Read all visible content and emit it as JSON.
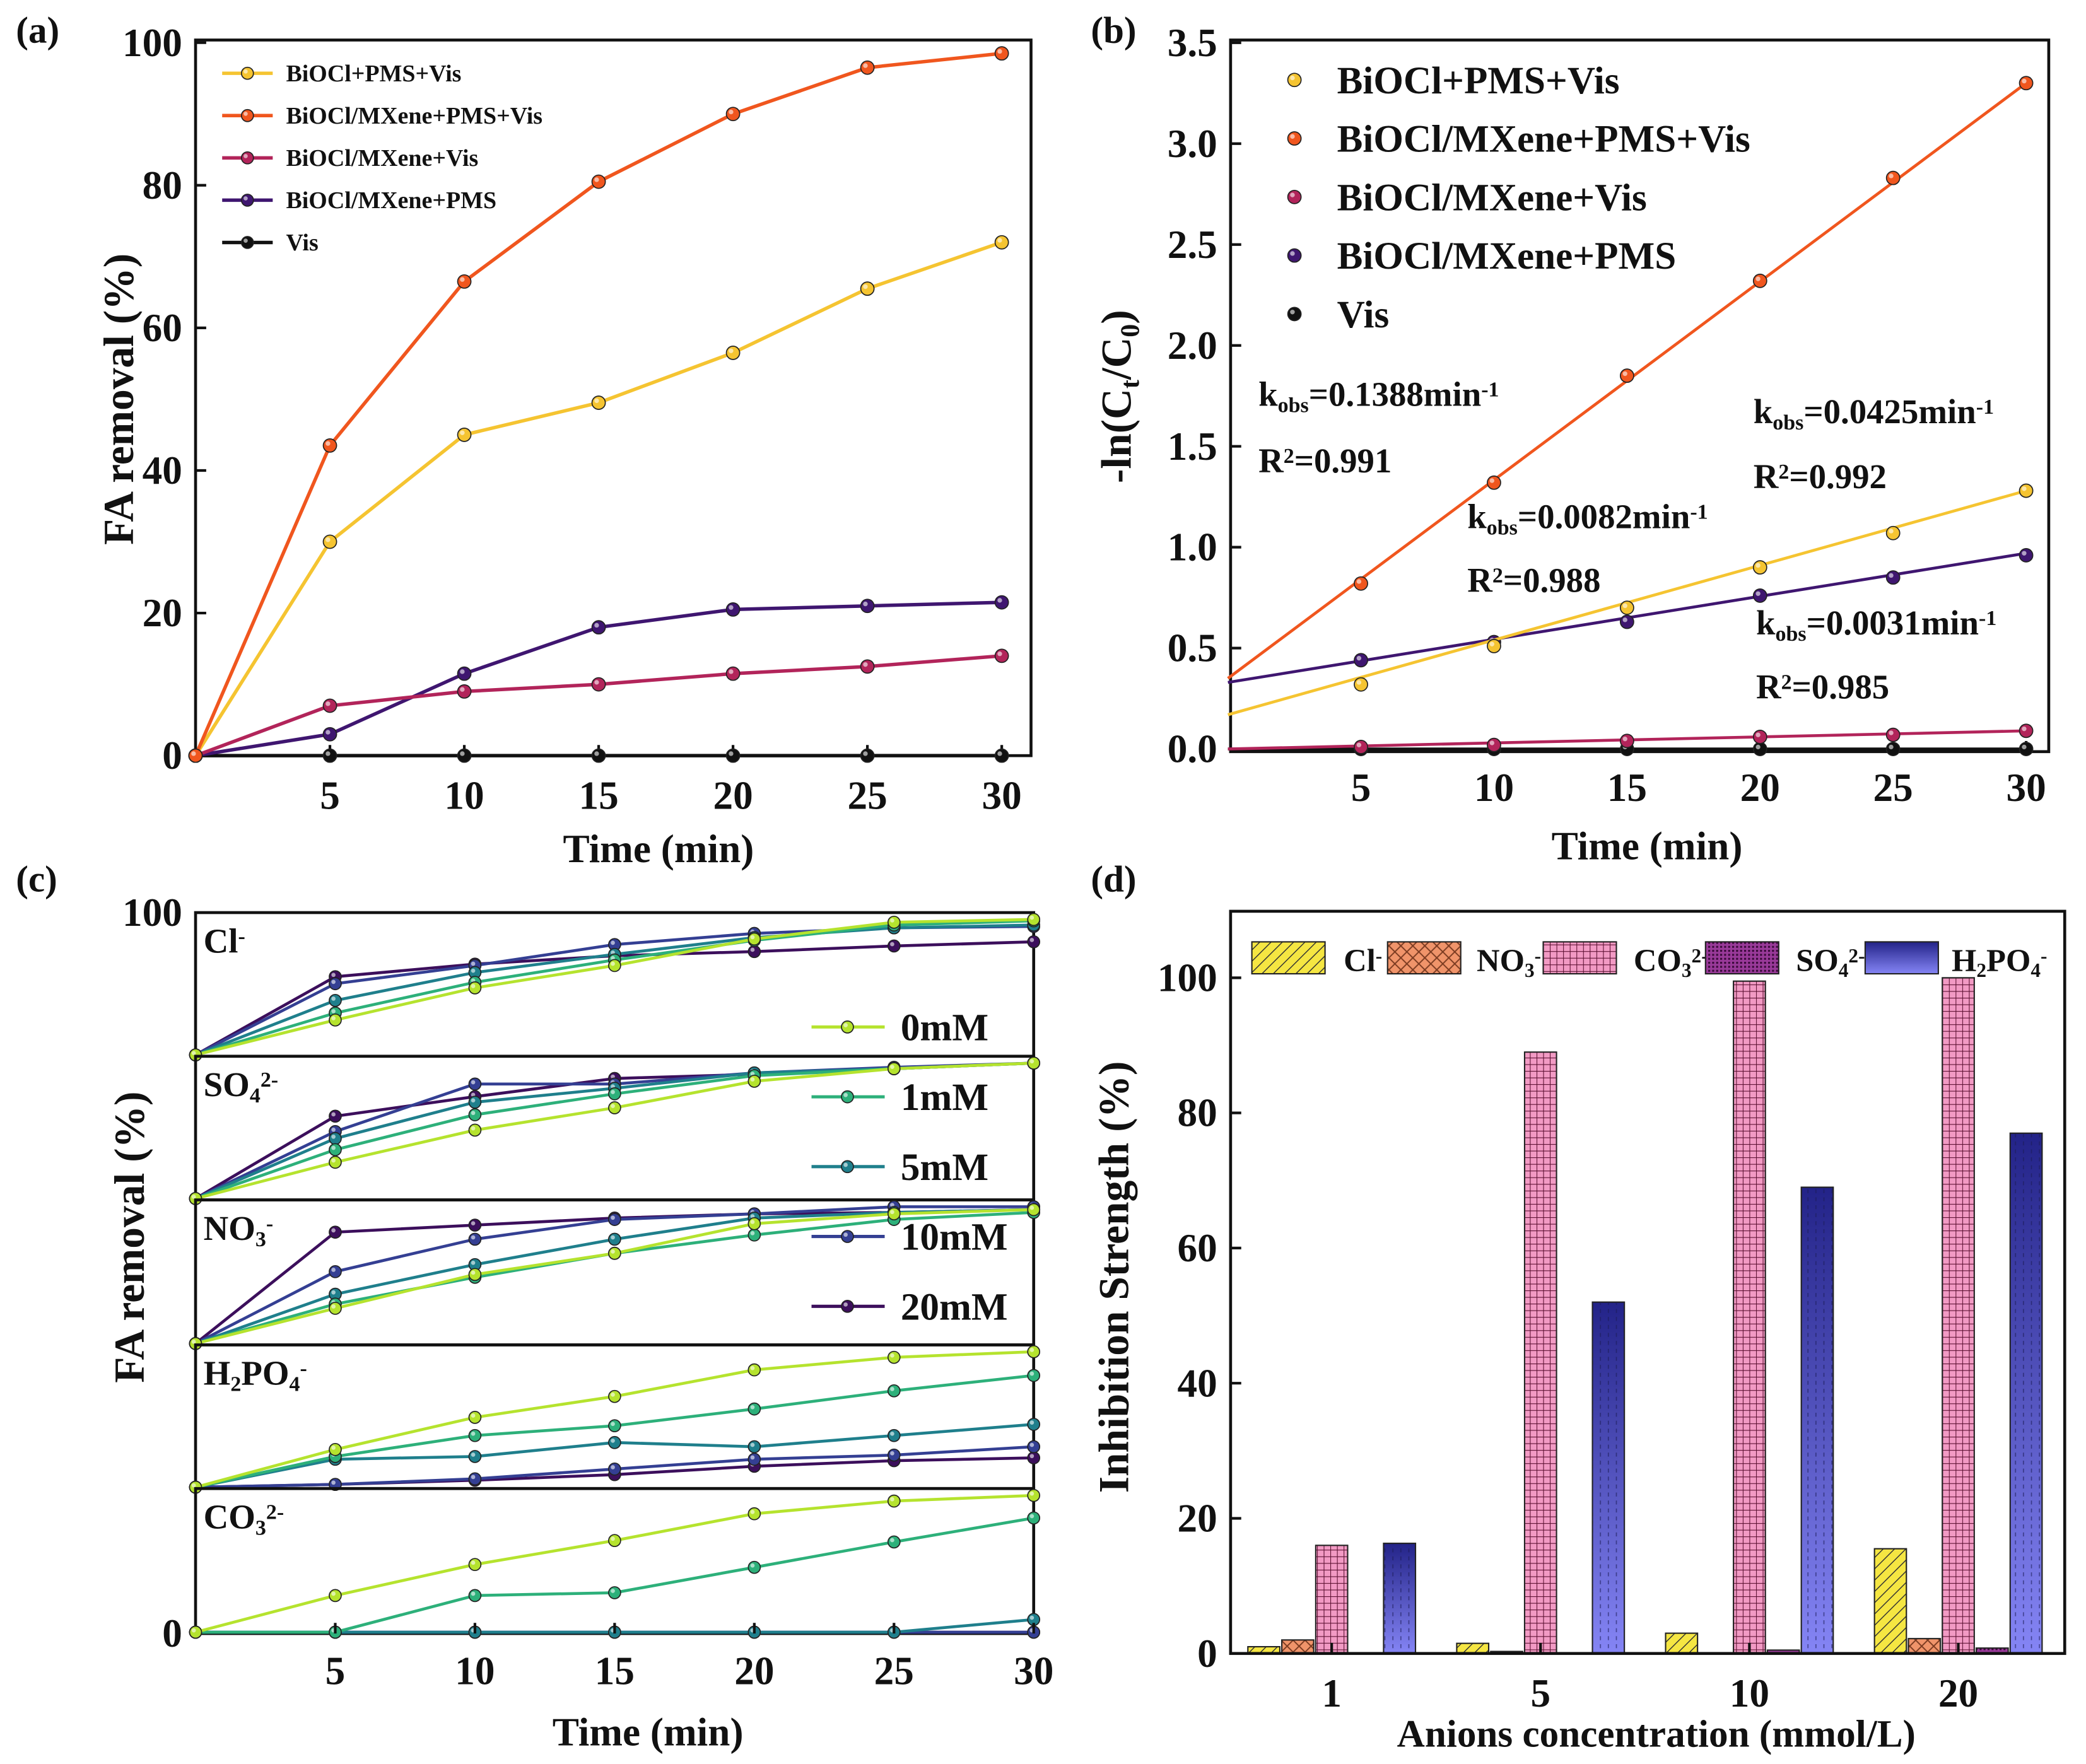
{
  "colors": {
    "BiOCl+PMS+Vis": "#F5C431",
    "BiOCl/MXene+PMS+Vis": "#F0561E",
    "BiOCl/MXene+Vis": "#B2245A",
    "BiOCl/MXene+PMS": "#3F1670",
    "Vis": "#111111",
    "0mM": "#B5E32E",
    "1mM": "#2DB07A",
    "5mM": "#1F7F8C",
    "10mM": "#343F93",
    "20mM": "#3C0F5C",
    "Cl": "#F5E642",
    "NO3": "#F0946A",
    "CO3": "#E8559A",
    "SO4": "#7A1F7A",
    "H2PO4": "#4A4AD0"
  },
  "chart_data": [
    {
      "panel": "(a)",
      "type": "line",
      "xlabel": "Time (min)",
      "ylabel": "FA removal (%)",
      "xlim": [
        0,
        30
      ],
      "ylim": [
        0,
        100
      ],
      "xticks": [
        5,
        10,
        15,
        20,
        25,
        30
      ],
      "yticks": [
        0,
        20,
        40,
        60,
        80,
        100
      ],
      "legend_position": "top-left",
      "x": [
        0,
        5,
        10,
        15,
        20,
        25,
        30
      ],
      "series": [
        {
          "name": "BiOCl+PMS+Vis",
          "values": [
            0,
            30,
            45,
            49.5,
            56.5,
            65.5,
            72
          ]
        },
        {
          "name": "BiOCl/MXene+PMS+Vis",
          "values": [
            0,
            43.5,
            66.5,
            80.5,
            90,
            96.5,
            98.5
          ]
        },
        {
          "name": "BiOCl/MXene+Vis",
          "values": [
            0,
            7,
            9,
            10,
            11.5,
            12.5,
            14
          ]
        },
        {
          "name": "BiOCl/MXene+PMS",
          "values": [
            0,
            3,
            11.5,
            18,
            20.5,
            21,
            21.5
          ]
        },
        {
          "name": "Vis",
          "values": [
            0,
            0,
            0,
            0,
            0,
            0,
            0
          ]
        }
      ]
    },
    {
      "panel": "(b)",
      "type": "scatter",
      "xlabel": "Time (min)",
      "ylabel_parts": [
        [
          "-ln",
          ""
        ],
        [
          "(C",
          ""
        ],
        [
          "t",
          "sub"
        ],
        [
          "/C",
          ""
        ],
        [
          "0",
          "sub"
        ],
        [
          ")",
          ""
        ]
      ],
      "xlim": [
        0,
        30
      ],
      "ylim": [
        0,
        3.5
      ],
      "xticks": [
        5,
        10,
        15,
        20,
        25,
        30
      ],
      "yticks": [
        "0.0",
        "0.5",
        "1.0",
        "1.5",
        "2.0",
        "2.5",
        "3.0",
        "3.5"
      ],
      "legend_position": "top-left",
      "x": [
        5,
        10,
        15,
        20,
        25,
        30
      ],
      "series": [
        {
          "name": "BiOCl+PMS+Vis",
          "values": [
            0.32,
            0.51,
            0.7,
            0.9,
            1.07,
            1.28
          ],
          "fit": [
            0.17,
            1.28
          ],
          "k_parts": [
            [
              "k",
              ""
            ],
            [
              "obs",
              "sub"
            ],
            [
              "=0.0425min",
              ""
            ],
            [
              "-1",
              "sup"
            ]
          ],
          "r2_parts": [
            [
              "R",
              ""
            ],
            [
              "2",
              "sup"
            ],
            [
              "=0.992",
              ""
            ]
          ]
        },
        {
          "name": "BiOCl/MXene+PMS+Vis",
          "values": [
            0.82,
            1.32,
            1.85,
            2.32,
            2.83,
            3.3
          ],
          "fit": [
            0.35,
            3.3
          ],
          "k_parts": [
            [
              "k",
              ""
            ],
            [
              "obs",
              "sub"
            ],
            [
              "=0.1388min",
              ""
            ],
            [
              "-1",
              "sup"
            ]
          ],
          "r2_parts": [
            [
              "R",
              ""
            ],
            [
              "2",
              "sup"
            ],
            [
              "=0.991",
              ""
            ]
          ]
        },
        {
          "name": "BiOCl/MXene+Vis",
          "values": [
            0.01,
            0.02,
            0.04,
            0.06,
            0.07,
            0.09
          ],
          "fit": [
            0.0,
            0.09
          ],
          "k_parts": [
            [
              "k",
              ""
            ],
            [
              "obs",
              "sub"
            ],
            [
              "=0.0031min",
              ""
            ],
            [
              "-1",
              "sup"
            ]
          ],
          "r2_parts": [
            [
              "R",
              ""
            ],
            [
              "2",
              "sup"
            ],
            [
              "=0.985",
              ""
            ]
          ]
        },
        {
          "name": "BiOCl/MXene+PMS",
          "values": [
            0.44,
            0.53,
            0.63,
            0.76,
            0.85,
            0.96
          ],
          "fit": [
            0.33,
            0.97
          ],
          "k_parts": [
            [
              "k",
              ""
            ],
            [
              "obs",
              "sub"
            ],
            [
              "=0.0082min",
              ""
            ],
            [
              "-1",
              "sup"
            ]
          ],
          "r2_parts": [
            [
              "R",
              ""
            ],
            [
              "2",
              "sup"
            ],
            [
              "=0.988",
              ""
            ]
          ]
        },
        {
          "name": "Vis",
          "values": [
            0,
            0,
            0,
            0,
            0,
            0
          ],
          "fit": [
            0,
            0
          ]
        }
      ]
    },
    {
      "panel": "(c)",
      "type": "line",
      "xlabel": "Time (min)",
      "ylabel": "FA removal (%)",
      "xlim": [
        0,
        30
      ],
      "xticks": [
        5,
        10,
        15,
        20,
        25,
        30
      ],
      "yticks": [
        "0",
        "100"
      ],
      "legend_position": "right",
      "legend": [
        "0mM",
        "1mM",
        "5mM",
        "10mM",
        "20mM"
      ],
      "x": [
        0,
        5,
        10,
        15,
        20,
        25,
        30
      ],
      "subplots": [
        {
          "label_parts": [
            [
              "Cl",
              ""
            ],
            [
              "-",
              "sup"
            ]
          ],
          "series": [
            {
              "name": "0mM",
              "values": [
                0,
                25,
                48,
                64,
                83,
                95,
                97
              ]
            },
            {
              "name": "1mM",
              "values": [
                0,
                30,
                52,
                68,
                82,
                93,
                96
              ]
            },
            {
              "name": "5mM",
              "values": [
                0,
                39,
                59,
                72,
                84,
                91,
                93
              ]
            },
            {
              "name": "10mM",
              "values": [
                0,
                51,
                64,
                79,
                87,
                91,
                92
              ]
            },
            {
              "name": "20mM",
              "values": [
                0,
                56,
                65,
                71,
                74,
                78,
                81
              ]
            }
          ]
        },
        {
          "label_parts": [
            [
              "SO",
              ""
            ],
            [
              "4",
              "sub"
            ],
            [
              "2-",
              "sup"
            ]
          ],
          "series": [
            {
              "name": "0mM",
              "values": [
                0,
                26,
                49,
                65,
                84,
                93,
                97
              ]
            },
            {
              "name": "1mM",
              "values": [
                0,
                35,
                60,
                75,
                88,
                93,
                97
              ]
            },
            {
              "name": "5mM",
              "values": [
                0,
                43,
                69,
                79,
                90,
                93,
                97
              ]
            },
            {
              "name": "10mM",
              "values": [
                0,
                48,
                82,
                82,
                90,
                94,
                97
              ]
            },
            {
              "name": "20mM",
              "values": [
                0,
                59,
                73,
                86,
                89,
                93,
                97
              ]
            }
          ]
        },
        {
          "label_parts": [
            [
              "NO",
              ""
            ],
            [
              "3",
              "sub"
            ],
            [
              "-",
              "sup"
            ]
          ],
          "series": [
            {
              "name": "0mM",
              "values": [
                0,
                25,
                49,
                64,
                85,
                92,
                95
              ]
            },
            {
              "name": "1mM",
              "values": [
                0,
                28,
                47,
                64,
                77,
                88,
                93
              ]
            },
            {
              "name": "5mM",
              "values": [
                0,
                35,
                56,
                74,
                89,
                93,
                95
              ]
            },
            {
              "name": "10mM",
              "values": [
                0,
                51,
                74,
                88,
                92,
                97,
                97
              ]
            },
            {
              "name": "20mM",
              "values": [
                0,
                79,
                84,
                89,
                92,
                93,
                95
              ]
            }
          ]
        },
        {
          "label_parts": [
            [
              "H",
              ""
            ],
            [
              "2",
              "sub"
            ],
            [
              "PO",
              ""
            ],
            [
              "4",
              "sub"
            ],
            [
              "-",
              "sup"
            ]
          ],
          "series": [
            {
              "name": "0mM",
              "values": [
                0,
                27,
                50,
                65,
                84,
                93,
                97
              ]
            },
            {
              "name": "1mM",
              "values": [
                0,
                22,
                37,
                44,
                56,
                69,
                80
              ]
            },
            {
              "name": "5mM",
              "values": [
                0,
                20,
                22,
                32,
                29,
                37,
                45
              ]
            },
            {
              "name": "10mM",
              "values": [
                0,
                2,
                6,
                13,
                20,
                23,
                29
              ]
            },
            {
              "name": "20mM",
              "values": [
                0,
                2,
                5,
                9,
                15,
                19,
                21
              ]
            }
          ]
        },
        {
          "label_parts": [
            [
              "CO",
              ""
            ],
            [
              "3",
              "sub"
            ],
            [
              "2-",
              "sup"
            ]
          ],
          "series": [
            {
              "name": "0mM",
              "values": [
                0,
                26,
                48,
                65,
                84,
                93,
                97
              ]
            },
            {
              "name": "1mM",
              "values": [
                0,
                0,
                26,
                28,
                46,
                64,
                81
              ]
            },
            {
              "name": "5mM",
              "values": [
                0,
                0,
                0,
                0,
                0,
                0,
                9
              ]
            },
            {
              "name": "10mM",
              "values": [
                0,
                0,
                0,
                0,
                0,
                0,
                0
              ]
            },
            {
              "name": "20mM",
              "values": [
                0,
                0,
                0,
                0,
                0,
                0,
                0
              ]
            }
          ]
        }
      ]
    },
    {
      "panel": "(d)",
      "type": "bar",
      "xlabel": "Anions concentration (mmol/L)",
      "ylabel": "Inhibition Strength (%)",
      "ylim": [
        0,
        110
      ],
      "yticks": [
        0,
        20,
        40,
        60,
        80,
        100
      ],
      "legend_position": "top",
      "categories": [
        "1",
        "5",
        "10",
        "20"
      ],
      "series": [
        {
          "name": "Cl",
          "label_parts": [
            [
              "Cl",
              ""
            ],
            [
              "-",
              "sup"
            ]
          ],
          "values": [
            1,
            1.5,
            3,
            15.5
          ]
        },
        {
          "name": "NO3",
          "label_parts": [
            [
              "NO",
              ""
            ],
            [
              "3",
              "sub"
            ],
            [
              "-",
              "sup"
            ]
          ],
          "values": [
            2,
            0.3,
            0,
            2.2
          ]
        },
        {
          "name": "CO3",
          "label_parts": [
            [
              "CO",
              ""
            ],
            [
              "3",
              "sub"
            ],
            [
              "2-",
              "sup"
            ]
          ],
          "values": [
            16,
            89,
            99.5,
            100
          ]
        },
        {
          "name": "SO4",
          "label_parts": [
            [
              "SO",
              ""
            ],
            [
              "4",
              "sub"
            ],
            [
              "2-",
              "sup"
            ]
          ],
          "values": [
            0,
            0,
            0.5,
            0.8
          ]
        },
        {
          "name": "H2PO4",
          "label_parts": [
            [
              "H",
              ""
            ],
            [
              "2",
              "sub"
            ],
            [
              "PO",
              ""
            ],
            [
              "4",
              "sub"
            ],
            [
              "-",
              "sup"
            ]
          ],
          "values": [
            16.3,
            52,
            69,
            77
          ]
        }
      ]
    }
  ]
}
